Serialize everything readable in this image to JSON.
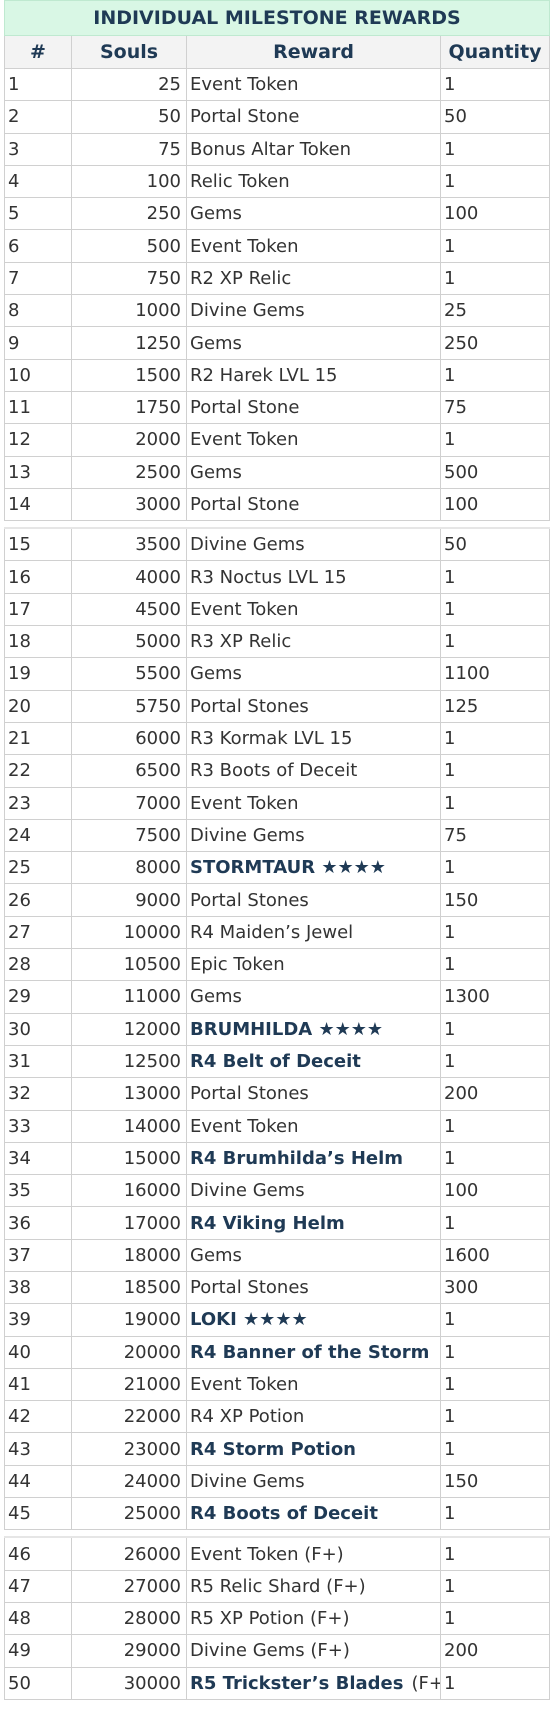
{
  "title": "INDIVIDUAL MILESTONE REWARDS",
  "headers": {
    "num": "#",
    "souls": "Souls",
    "reward": "Reward",
    "quantity": "Quantity"
  },
  "groups": [
    [
      {
        "n": "1",
        "souls": "25",
        "reward": "Event Token",
        "qty": "1",
        "bold": false
      },
      {
        "n": "2",
        "souls": "50",
        "reward": "Portal Stone",
        "qty": "50",
        "bold": false
      },
      {
        "n": "3",
        "souls": "75",
        "reward": "Bonus Altar Token",
        "qty": "1",
        "bold": false
      },
      {
        "n": "4",
        "souls": "100",
        "reward": "Relic Token",
        "qty": "1",
        "bold": false
      },
      {
        "n": "5",
        "souls": "250",
        "reward": "Gems",
        "qty": "100",
        "bold": false
      },
      {
        "n": "6",
        "souls": "500",
        "reward": "Event Token",
        "qty": "1",
        "bold": false
      },
      {
        "n": "7",
        "souls": "750",
        "reward": "R2 XP Relic",
        "qty": "1",
        "bold": false
      },
      {
        "n": "8",
        "souls": "1000",
        "reward": "Divine Gems",
        "qty": "25",
        "bold": false
      },
      {
        "n": "9",
        "souls": "1250",
        "reward": "Gems",
        "qty": "250",
        "bold": false
      },
      {
        "n": "10",
        "souls": "1500",
        "reward": "R2 Harek LVL 15",
        "qty": "1",
        "bold": false
      },
      {
        "n": "11",
        "souls": "1750",
        "reward": "Portal Stone",
        "qty": "75",
        "bold": false
      },
      {
        "n": "12",
        "souls": "2000",
        "reward": "Event Token",
        "qty": "1",
        "bold": false
      },
      {
        "n": "13",
        "souls": "2500",
        "reward": "Gems",
        "qty": "500",
        "bold": false
      },
      {
        "n": "14",
        "souls": "3000",
        "reward": "Portal Stone",
        "qty": "100",
        "bold": false
      }
    ],
    [
      {
        "n": "15",
        "souls": "3500",
        "reward": "Divine Gems",
        "qty": "50",
        "bold": false
      },
      {
        "n": "16",
        "souls": "4000",
        "reward": "R3 Noctus LVL 15",
        "qty": "1",
        "bold": false
      },
      {
        "n": "17",
        "souls": "4500",
        "reward": "Event Token",
        "qty": "1",
        "bold": false
      },
      {
        "n": "18",
        "souls": "5000",
        "reward": "R3 XP Relic",
        "qty": "1",
        "bold": false
      },
      {
        "n": "19",
        "souls": "5500",
        "reward": "Gems",
        "qty": "1100",
        "bold": false
      },
      {
        "n": "20",
        "souls": "5750",
        "reward": "Portal Stones",
        "qty": "125",
        "bold": false
      },
      {
        "n": "21",
        "souls": "6000",
        "reward": "R3 Kormak LVL 15",
        "qty": "1",
        "bold": false
      },
      {
        "n": "22",
        "souls": "6500",
        "reward": "R3 Boots of Deceit",
        "qty": "1",
        "bold": false
      },
      {
        "n": "23",
        "souls": "7000",
        "reward": "Event Token",
        "qty": "1",
        "bold": false
      },
      {
        "n": "24",
        "souls": "7500",
        "reward": "Divine Gems",
        "qty": "75",
        "bold": false
      },
      {
        "n": "25",
        "souls": "8000",
        "reward": "STORMTAUR ★★★★",
        "qty": "1",
        "bold": true
      },
      {
        "n": "26",
        "souls": "9000",
        "reward": "Portal Stones",
        "qty": "150",
        "bold": false
      },
      {
        "n": "27",
        "souls": "10000",
        "reward": "R4 Maiden’s Jewel",
        "qty": "1",
        "bold": false
      },
      {
        "n": "28",
        "souls": "10500",
        "reward": "Epic Token",
        "qty": "1",
        "bold": false
      },
      {
        "n": "29",
        "souls": "11000",
        "reward": "Gems",
        "qty": "1300",
        "bold": false
      },
      {
        "n": "30",
        "souls": "12000",
        "reward": "BRUMHILDA ★★★★",
        "qty": "1",
        "bold": true
      },
      {
        "n": "31",
        "souls": "12500",
        "reward": "R4 Belt of Deceit",
        "qty": "1",
        "bold": true
      },
      {
        "n": "32",
        "souls": "13000",
        "reward": "Portal Stones",
        "qty": "200",
        "bold": false
      },
      {
        "n": "33",
        "souls": "14000",
        "reward": "Event Token",
        "qty": "1",
        "bold": false
      },
      {
        "n": "34",
        "souls": "15000",
        "reward": "R4 Brumhilda’s Helm",
        "qty": "1",
        "bold": true
      },
      {
        "n": "35",
        "souls": "16000",
        "reward": "Divine Gems",
        "qty": "100",
        "bold": false
      },
      {
        "n": "36",
        "souls": "17000",
        "reward": "R4 Viking Helm",
        "qty": "1",
        "bold": true
      },
      {
        "n": "37",
        "souls": "18000",
        "reward": "Gems",
        "qty": "1600",
        "bold": false
      },
      {
        "n": "38",
        "souls": "18500",
        "reward": "Portal Stones",
        "qty": "300",
        "bold": false
      },
      {
        "n": "39",
        "souls": "19000",
        "reward": "LOKI ★★★★",
        "qty": "1",
        "bold": true
      },
      {
        "n": "40",
        "souls": "20000",
        "reward": "R4 Banner of the Storm",
        "qty": "1",
        "bold": true
      },
      {
        "n": "41",
        "souls": "21000",
        "reward": "Event Token",
        "qty": "1",
        "bold": false
      },
      {
        "n": "42",
        "souls": "22000",
        "reward": "R4 XP Potion",
        "qty": "1",
        "bold": false
      },
      {
        "n": "43",
        "souls": "23000",
        "reward": "R4 Storm Potion",
        "qty": "1",
        "bold": true
      },
      {
        "n": "44",
        "souls": "24000",
        "reward": "Divine Gems",
        "qty": "150",
        "bold": false
      },
      {
        "n": "45",
        "souls": "25000",
        "reward": "R4 Boots of Deceit",
        "qty": "1",
        "bold": true
      }
    ],
    [
      {
        "n": "46",
        "souls": "26000",
        "reward": "Event Token (F+)",
        "qty": "1",
        "bold": false
      },
      {
        "n": "47",
        "souls": "27000",
        "reward": "R5 Relic Shard (F+)",
        "qty": "1",
        "bold": false
      },
      {
        "n": "48",
        "souls": "28000",
        "reward": "R5 XP Potion (F+)",
        "qty": "1",
        "bold": false
      },
      {
        "n": "49",
        "souls": "29000",
        "reward": "Divine Gems (F+)",
        "qty": "200",
        "bold": false
      },
      {
        "n": "50",
        "souls": "30000",
        "reward": "R5 Trickster’s Blades",
        "suffix": "(F+)",
        "qty": "1",
        "bold": true
      }
    ]
  ]
}
